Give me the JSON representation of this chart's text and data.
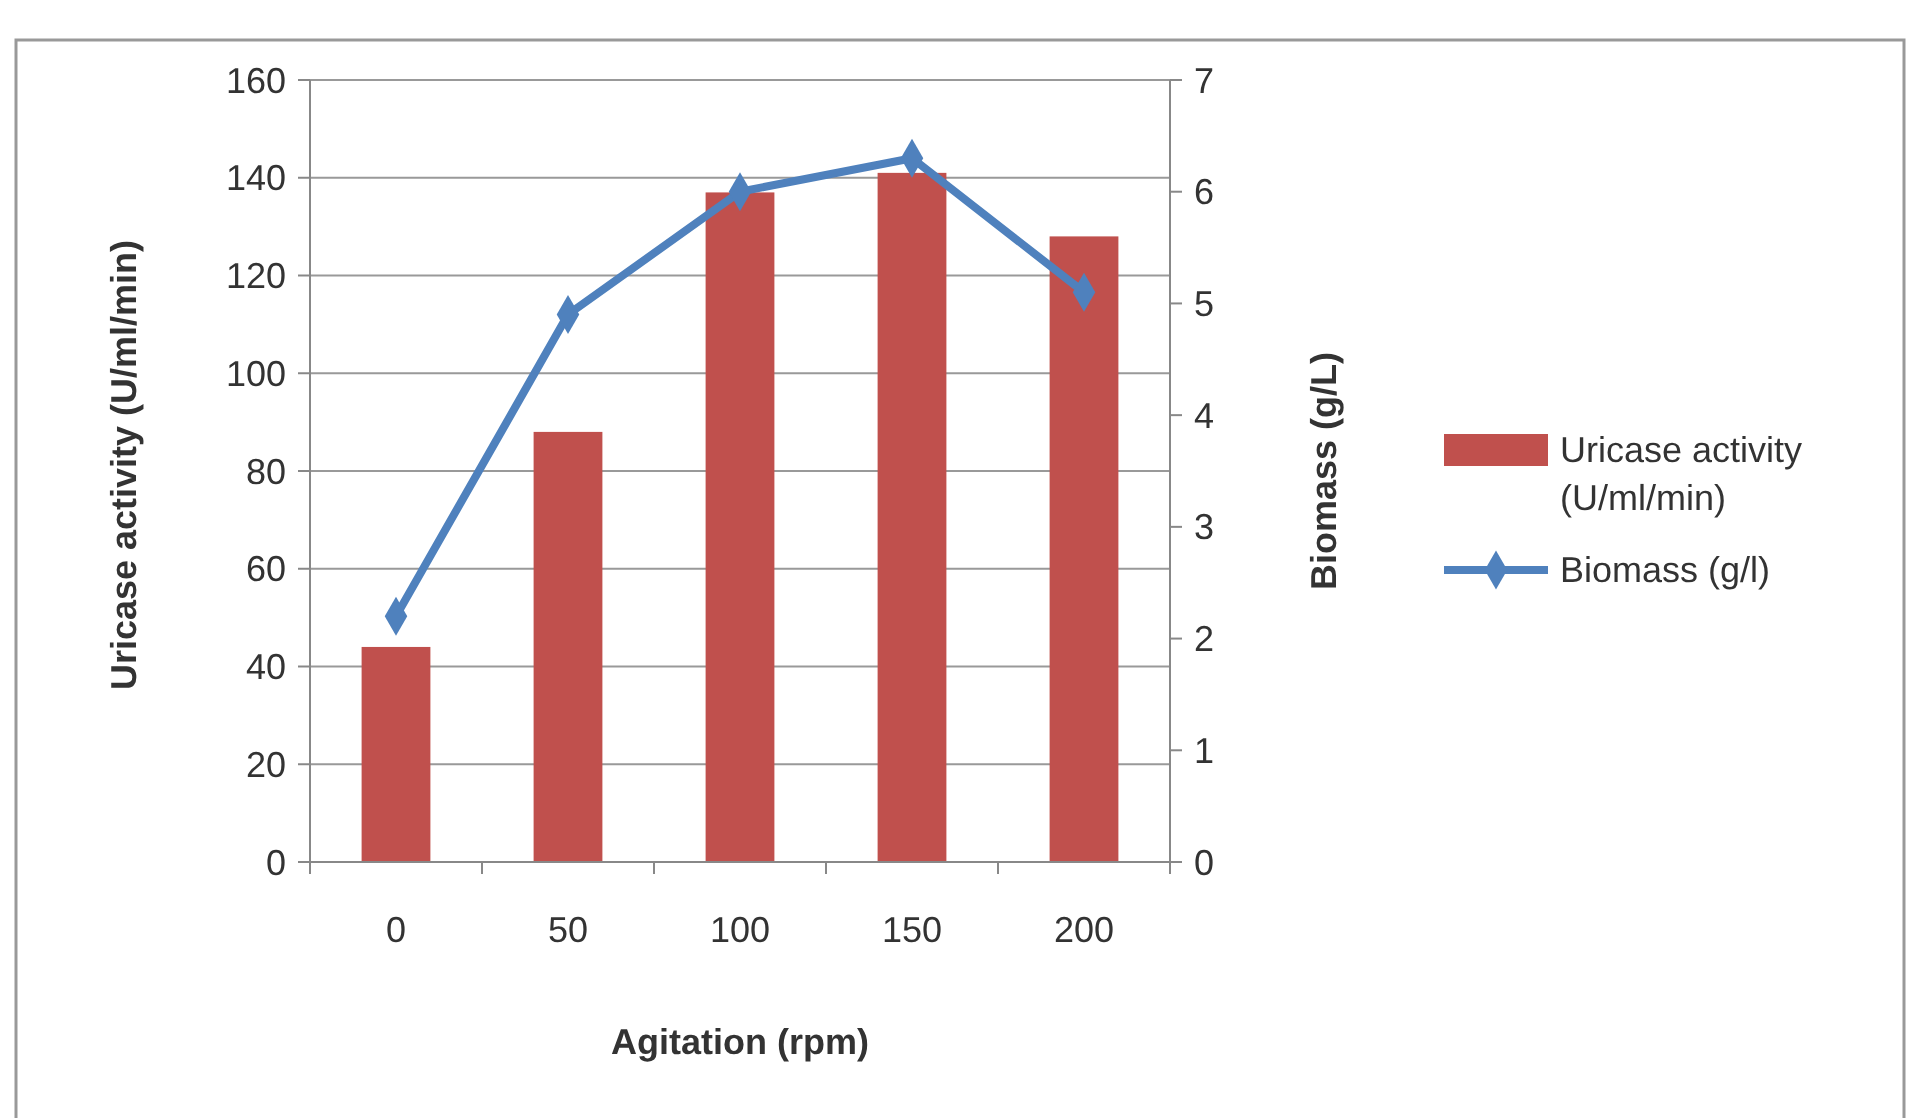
{
  "chart_data": {
    "type": "bar",
    "xlabel": "Agitation (rpm)",
    "ylabel": "Uricase activity (U/ml/min)",
    "y2label": "Biomass (g/L)",
    "categories": [
      "0",
      "50",
      "100",
      "150",
      "200"
    ],
    "series": [
      {
        "name": "Uricase activity (U/ml/min)",
        "color": "#c0504d",
        "values": [
          44,
          88,
          137,
          141,
          128
        ]
      },
      {
        "name": "Biomass (g/l)",
        "type": "line",
        "axis": "y2",
        "color": "#4f81bd",
        "marker": "diamond",
        "values": [
          2.2,
          4.9,
          6.0,
          6.3,
          5.1
        ]
      }
    ],
    "ylim": [
      0,
      160
    ],
    "yticks": [
      0,
      20,
      40,
      60,
      80,
      100,
      120,
      140,
      160
    ],
    "y2lim": [
      0,
      7
    ],
    "y2ticks": [
      0,
      1,
      2,
      3,
      4,
      5,
      6,
      7
    ],
    "grid": "y",
    "legend": "right"
  }
}
